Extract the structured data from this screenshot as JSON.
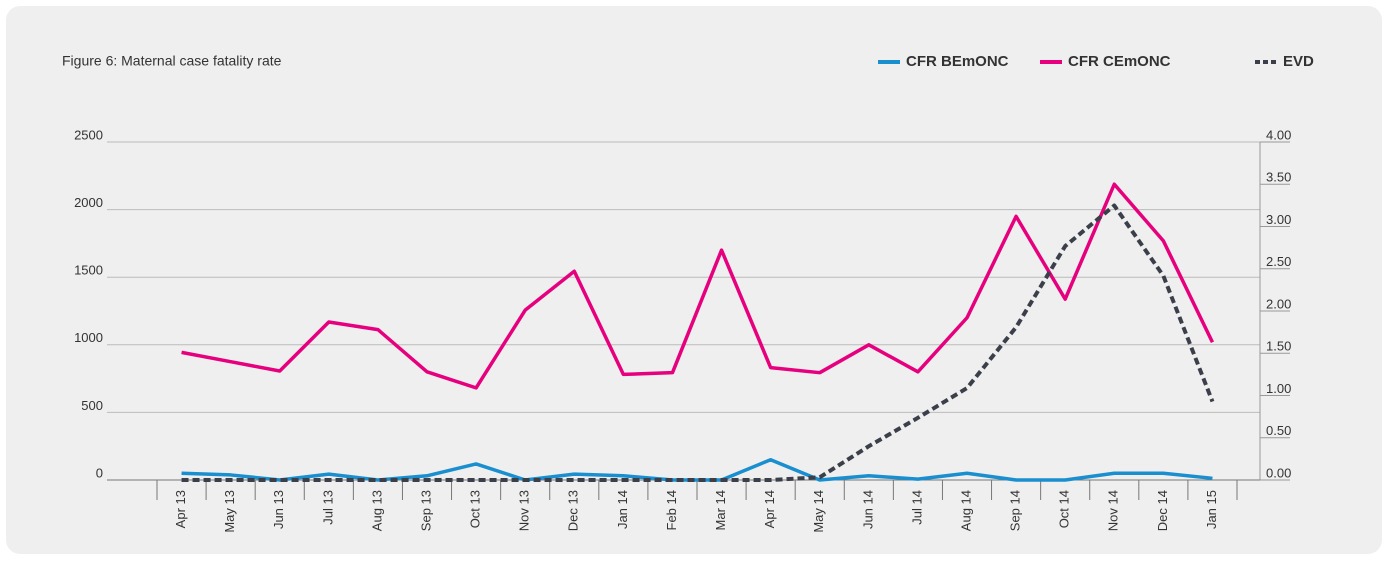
{
  "chart_data": {
    "type": "line",
    "title": "Figure 6: Maternal case fatality rate",
    "categories": [
      "Apr 13",
      "May 13",
      "Jun 13",
      "Jul 13",
      "Aug 13",
      "Sep 13",
      "Oct 13",
      "Nov 13",
      "Dec 13",
      "Jan 14",
      "Feb 14",
      "Mar 14",
      "Apr 14",
      "May 14",
      "Jun 14",
      "Jul 14",
      "Aug 14",
      "Sep 14",
      "Oct 14",
      "Nov 14",
      "Dec 14",
      "Jan 15"
    ],
    "series": [
      {
        "name": "CFR BEmONC",
        "color": "#1a8fd0",
        "axis": "y2",
        "dash": false,
        "values": [
          0.08,
          0.06,
          0,
          0.07,
          0,
          0.05,
          0.19,
          0,
          0.07,
          0.05,
          0,
          0,
          0.24,
          0,
          0.05,
          0.01,
          0.08,
          0,
          0,
          0.08,
          0.08,
          0.02
        ]
      },
      {
        "name": "CFR CEmONC",
        "color": "#e6007e",
        "axis": "y2",
        "dash": false,
        "values": [
          1.51,
          1.4,
          1.29,
          1.87,
          1.78,
          1.28,
          1.09,
          2.01,
          2.47,
          1.25,
          1.27,
          2.72,
          1.33,
          1.27,
          1.6,
          1.28,
          1.92,
          3.12,
          2.14,
          3.5,
          2.83,
          1.63
        ]
      },
      {
        "name": "EVD",
        "color": "#3a3f4a",
        "dash": true,
        "values": [
          0,
          0,
          0,
          0,
          0,
          0,
          0,
          0,
          0,
          0,
          0,
          0,
          0,
          20,
          250,
          460,
          680,
          1130,
          1730,
          2030,
          1510,
          580
        ]
      }
    ],
    "ylim": [
      0,
      2500
    ],
    "yticks": [
      0,
      500,
      1000,
      1500,
      2000,
      2500
    ],
    "y2lim": [
      0,
      4
    ],
    "y2ticks": [
      {
        "value": 0,
        "label": "0.00"
      },
      {
        "value": 0.5,
        "label": "0.50"
      },
      {
        "value": 1,
        "label": "1.00"
      },
      {
        "value": 1.5,
        "label": "1.50"
      },
      {
        "value": 2,
        "label": "2.00"
      },
      {
        "value": 2.5,
        "label": "2.50"
      },
      {
        "value": 3,
        "label": "3.00"
      },
      {
        "value": 3.5,
        "label": "3.50"
      },
      {
        "value": 4,
        "label": "4.00"
      }
    ],
    "grid": true,
    "legend": "top-right"
  }
}
